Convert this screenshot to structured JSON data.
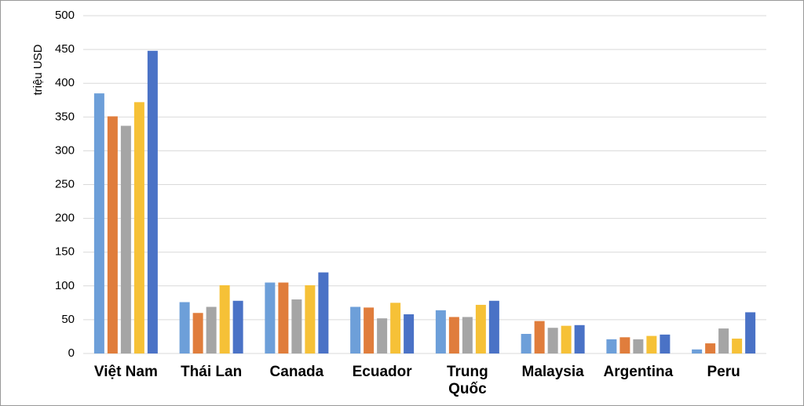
{
  "chart_data": {
    "type": "bar",
    "y_label": "triệu USD",
    "categories": [
      "Việt Nam",
      "Thái Lan",
      "Canada",
      "Ecuador",
      "Trung Quốc",
      "Malaysia",
      "Argentina",
      "Peru"
    ],
    "series": [
      {
        "color": "#6d9fd9",
        "values": [
          385,
          76,
          105,
          69,
          64,
          29,
          21,
          6
        ]
      },
      {
        "color": "#e07d3c",
        "values": [
          351,
          60,
          105,
          68,
          54,
          48,
          24,
          15
        ]
      },
      {
        "color": "#a5a5a5",
        "values": [
          337,
          69,
          80,
          52,
          54,
          38,
          21,
          37
        ]
      },
      {
        "color": "#f6c137",
        "values": [
          372,
          101,
          101,
          75,
          72,
          41,
          26,
          22
        ]
      },
      {
        "color": "#4a72c6",
        "values": [
          448,
          78,
          120,
          58,
          78,
          42,
          28,
          61
        ]
      }
    ],
    "ylim": [
      0,
      500
    ],
    "yticks": [
      0,
      50,
      100,
      150,
      200,
      250,
      300,
      350,
      400,
      450,
      500
    ],
    "grid": true
  }
}
